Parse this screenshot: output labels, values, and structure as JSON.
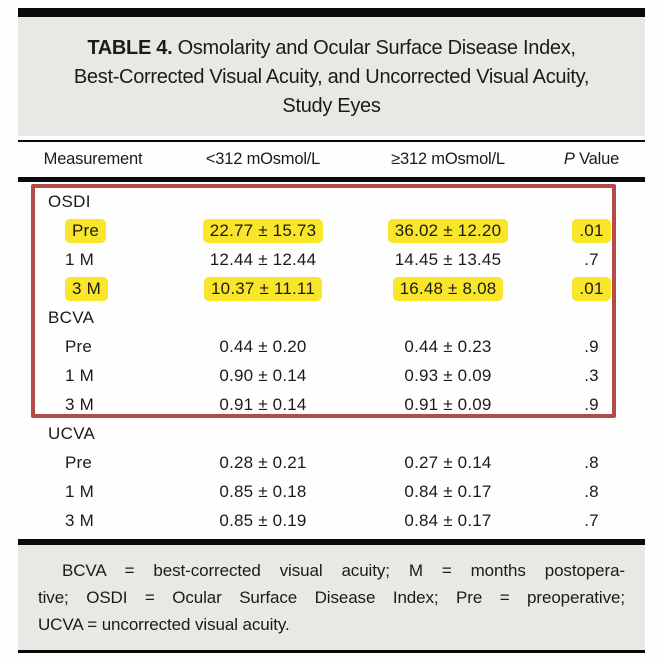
{
  "title": {
    "tag": "TABLE 4.",
    "line1": "Osmolarity and Ocular Surface Disease Index,",
    "line2": "Best-Corrected Visual Acuity, and Uncorrected Visual Acuity,",
    "line3": "Study Eyes"
  },
  "header": {
    "measurement": "Measurement",
    "col_lt": "<312 mOsmol/L",
    "col_ge": "≥312 mOsmol/L",
    "p_italic": "P",
    "p_rest": " Value"
  },
  "table": {
    "sections": [
      {
        "name": "OSDI",
        "rows": [
          {
            "label": "Pre",
            "v1": "22.77 ± 15.73",
            "v2": "36.02 ± 12.20",
            "p": ".01",
            "highlighted": true
          },
          {
            "label": "1 M",
            "v1": "12.44 ± 12.44",
            "v2": "14.45 ± 13.45",
            "p": ".7",
            "highlighted": false
          },
          {
            "label": "3 M",
            "v1": "10.37 ± 11.11",
            "v2": "16.48 ± 8.08",
            "p": ".01",
            "highlighted": true
          }
        ]
      },
      {
        "name": "BCVA",
        "rows": [
          {
            "label": "Pre",
            "v1": "0.44 ± 0.20",
            "v2": "0.44 ± 0.23",
            "p": ".9",
            "highlighted": false
          },
          {
            "label": "1 M",
            "v1": "0.90 ± 0.14",
            "v2": "0.93 ± 0.09",
            "p": ".3",
            "highlighted": false
          },
          {
            "label": "3 M",
            "v1": "0.91 ± 0.14",
            "v2": "0.91 ± 0.09",
            "p": ".9",
            "highlighted": false
          }
        ]
      },
      {
        "name": "UCVA",
        "rows": [
          {
            "label": "Pre",
            "v1": "0.28 ± 0.21",
            "v2": "0.27 ± 0.14",
            "p": ".8",
            "highlighted": false
          },
          {
            "label": "1 M",
            "v1": "0.85 ± 0.18",
            "v2": "0.84 ± 0.17",
            "p": ".8",
            "highlighted": false
          },
          {
            "label": "3 M",
            "v1": "0.85 ± 0.19",
            "v2": "0.84 ± 0.17",
            "p": ".7",
            "highlighted": false
          }
        ]
      }
    ]
  },
  "annotation": {
    "red_box_covers": "OSDI and BCVA sections",
    "highlight_color": "#f9e62a",
    "box_color": "#b34c46"
  },
  "footnote": {
    "lines": [
      "BCVA = best-corrected visual acuity; M = months postopera-",
      "tive; OSDI = Ocular Surface Disease Index; Pre = preoperative;",
      "UCVA = uncorrected visual acuity."
    ]
  },
  "colors": {
    "block_gray": "#e9e8e5",
    "rule_black": "#0a0a0a",
    "highlight_yellow": "#f9e62a",
    "annotation_red": "#b34c46"
  }
}
